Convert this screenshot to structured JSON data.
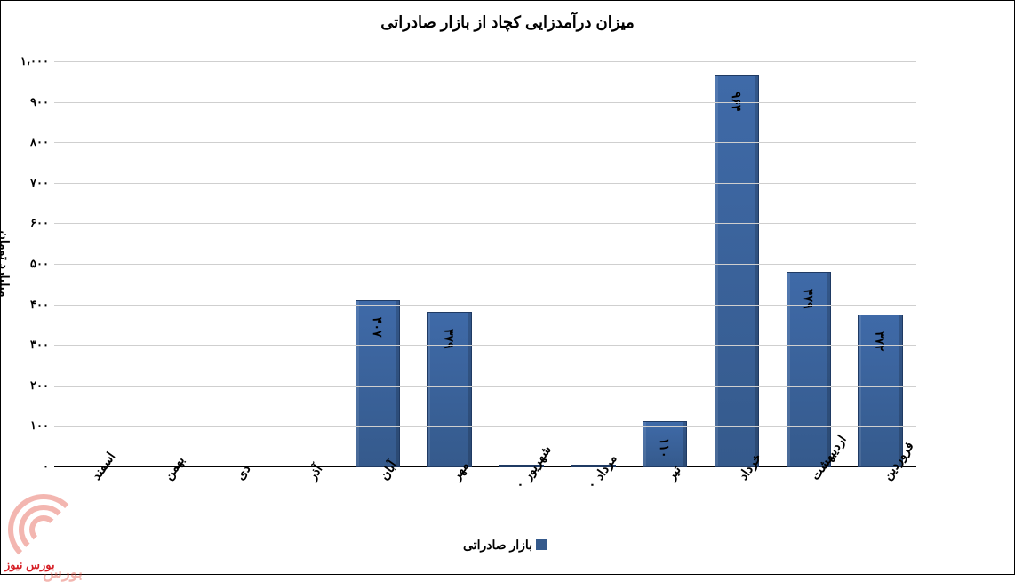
{
  "chart": {
    "type": "bar",
    "title": "میزان درآمدزایی کچاد از بازار صادراتی",
    "title_fontsize": 18,
    "y_axis_title": "میلیارد تومان",
    "categories": [
      "فروردین",
      "اردیبهشت",
      "خرداد",
      "تیر",
      "مرداد",
      "شهریور",
      "مهر",
      "آبان",
      "آذر",
      "دی",
      "بهمن",
      "اسفند"
    ],
    "values": [
      372,
      479,
      964,
      110,
      0,
      0,
      379,
      407,
      null,
      null,
      null,
      null
    ],
    "value_labels": [
      "۳۷۲",
      "۴۷۹",
      "۹۶۴",
      "۱۱۰",
      "۰",
      "۰",
      "۳۷۹",
      "۴۰۷",
      "",
      "",
      "",
      ""
    ],
    "bar_color": "#355a8c",
    "bar_width": 0.6,
    "ylim": [
      0,
      1000
    ],
    "yticks": [
      0,
      100,
      200,
      300,
      400,
      500,
      600,
      700,
      800,
      900,
      1000
    ],
    "ytick_labels": [
      "۰",
      "۱۰۰",
      "۲۰۰",
      "۳۰۰",
      "۴۰۰",
      "۵۰۰",
      "۶۰۰",
      "۷۰۰",
      "۸۰۰",
      "۹۰۰",
      "۱،۰۰۰"
    ],
    "grid_color": "#cfcfcf",
    "background_color": "#ffffff",
    "legend_label": "بازار صادراتی",
    "legend_color": "#355a8c",
    "label_fontsize": 14,
    "x_tick_rotation": -55
  },
  "branding": {
    "watermark_color": "#e24a3b",
    "watermark_text": "بورس",
    "footer": "بورس نیوز",
    "footer_color": "#d61f26"
  }
}
